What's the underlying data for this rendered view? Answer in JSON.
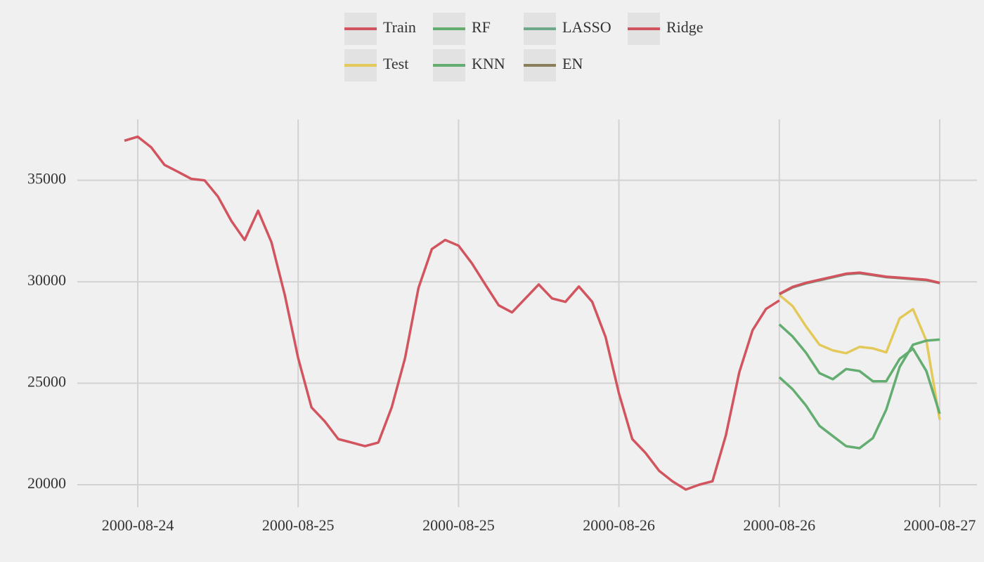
{
  "chart_data": {
    "type": "line",
    "categories": [
      null,
      "2000-08-24",
      null,
      null,
      null,
      null,
      null,
      null,
      null,
      null,
      null,
      null,
      null,
      "2000-08-25",
      null,
      null,
      null,
      null,
      null,
      null,
      null,
      null,
      null,
      null,
      null,
      "2000-08-25",
      null,
      null,
      null,
      null,
      null,
      null,
      null,
      null,
      null,
      null,
      null,
      "2000-08-26",
      null,
      null,
      null,
      null,
      null,
      null,
      null,
      null,
      null,
      null,
      null,
      "2000-08-26",
      null,
      null,
      null,
      null,
      null,
      null,
      null,
      null,
      null,
      null,
      null,
      "2000-08-27"
    ],
    "series": [
      {
        "name": "Train",
        "color": "#d1545f",
        "values": [
          36950,
          37150,
          36630,
          35760,
          35420,
          35070,
          35000,
          34200,
          33000,
          32060,
          33500,
          31950,
          29350,
          26240,
          23810,
          23120,
          22250,
          22080,
          21900,
          22080,
          23810,
          26240,
          29700,
          31610,
          32060,
          31780,
          30910,
          29870,
          28840,
          28490,
          29180,
          29870,
          29180,
          29010,
          29770,
          29010,
          27280,
          24500,
          22250,
          21560,
          20690,
          20170,
          19760,
          20000,
          20170,
          22430,
          25540,
          27620,
          28660,
          29080,
          null,
          null,
          null,
          null,
          null,
          null,
          null,
          null,
          null,
          null,
          null,
          null
        ]
      },
      {
        "name": "Test",
        "color": "#e3c95a",
        "values": [
          null,
          null,
          null,
          null,
          null,
          null,
          null,
          null,
          null,
          null,
          null,
          null,
          null,
          null,
          null,
          null,
          null,
          null,
          null,
          null,
          null,
          null,
          null,
          null,
          null,
          null,
          null,
          null,
          null,
          null,
          null,
          null,
          null,
          null,
          null,
          null,
          null,
          null,
          null,
          null,
          null,
          null,
          null,
          null,
          null,
          null,
          null,
          null,
          null,
          29350,
          28800,
          27800,
          26900,
          26620,
          26480,
          26790,
          26720,
          26520,
          28200,
          28650,
          27100,
          23200
        ]
      },
      {
        "name": "RF",
        "color": "#63ad70",
        "values": [
          null,
          null,
          null,
          null,
          null,
          null,
          null,
          null,
          null,
          null,
          null,
          null,
          null,
          null,
          null,
          null,
          null,
          null,
          null,
          null,
          null,
          null,
          null,
          null,
          null,
          null,
          null,
          null,
          null,
          null,
          null,
          null,
          null,
          null,
          null,
          null,
          null,
          null,
          null,
          null,
          null,
          null,
          null,
          null,
          null,
          null,
          null,
          null,
          null,
          27900,
          27300,
          26500,
          25500,
          25200,
          25700,
          25600,
          25100,
          25100,
          26200,
          26700,
          25600,
          23500
        ]
      },
      {
        "name": "KNN",
        "color": "#63ad70",
        "values": [
          null,
          null,
          null,
          null,
          null,
          null,
          null,
          null,
          null,
          null,
          null,
          null,
          null,
          null,
          null,
          null,
          null,
          null,
          null,
          null,
          null,
          null,
          null,
          null,
          null,
          null,
          null,
          null,
          null,
          null,
          null,
          null,
          null,
          null,
          null,
          null,
          null,
          null,
          null,
          null,
          null,
          null,
          null,
          null,
          null,
          null,
          null,
          null,
          null,
          25300,
          24700,
          23900,
          22900,
          22400,
          21900,
          21800,
          22300,
          23700,
          25800,
          26900,
          27100,
          27150
        ]
      },
      {
        "name": "LASSO",
        "color": "#6ea98a",
        "values": [
          null,
          null,
          null,
          null,
          null,
          null,
          null,
          null,
          null,
          null,
          null,
          null,
          null,
          null,
          null,
          null,
          null,
          null,
          null,
          null,
          null,
          null,
          null,
          null,
          null,
          null,
          null,
          null,
          null,
          null,
          null,
          null,
          null,
          null,
          null,
          null,
          null,
          null,
          null,
          null,
          null,
          null,
          null,
          null,
          null,
          null,
          null,
          null,
          null,
          29380,
          29720,
          29920,
          30070,
          30220,
          30370,
          30420,
          30330,
          30230,
          30180,
          30130,
          30080,
          29930
        ]
      },
      {
        "name": "EN",
        "color": "#8a7f5c",
        "values": [
          null,
          null,
          null,
          null,
          null,
          null,
          null,
          null,
          null,
          null,
          null,
          null,
          null,
          null,
          null,
          null,
          null,
          null,
          null,
          null,
          null,
          null,
          null,
          null,
          null,
          null,
          null,
          null,
          null,
          null,
          null,
          null,
          null,
          null,
          null,
          null,
          null,
          null,
          null,
          null,
          null,
          null,
          null,
          null,
          null,
          null,
          null,
          null,
          null,
          29390,
          29740,
          29940,
          30090,
          30240,
          30390,
          30440,
          30340,
          30240,
          30190,
          30140,
          30090,
          29940
        ]
      },
      {
        "name": "Ridge",
        "color": "#d1545f",
        "values": [
          null,
          null,
          null,
          null,
          null,
          null,
          null,
          null,
          null,
          null,
          null,
          null,
          null,
          null,
          null,
          null,
          null,
          null,
          null,
          null,
          null,
          null,
          null,
          null,
          null,
          null,
          null,
          null,
          null,
          null,
          null,
          null,
          null,
          null,
          null,
          null,
          null,
          null,
          null,
          null,
          null,
          null,
          null,
          null,
          null,
          null,
          null,
          null,
          null,
          29400,
          29750,
          29950,
          30100,
          30250,
          30400,
          30450,
          30350,
          30250,
          30200,
          30150,
          30100,
          29950
        ]
      }
    ],
    "ylim": [
      19100,
      38000
    ],
    "yticks": [
      20000,
      25000,
      30000,
      35000
    ],
    "grid": true
  }
}
